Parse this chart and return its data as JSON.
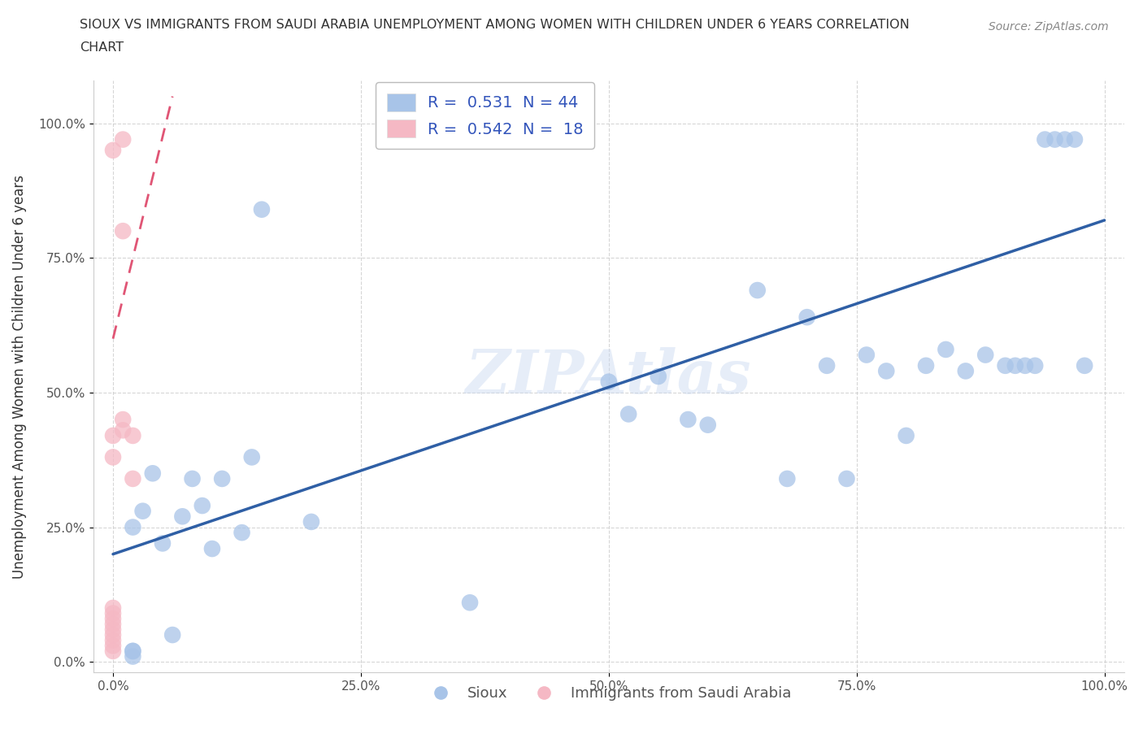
{
  "title_line1": "SIOUX VS IMMIGRANTS FROM SAUDI ARABIA UNEMPLOYMENT AMONG WOMEN WITH CHILDREN UNDER 6 YEARS CORRELATION",
  "title_line2": "CHART",
  "source": "Source: ZipAtlas.com",
  "ylabel": "Unemployment Among Women with Children Under 6 years",
  "watermark": "ZIPAtlas",
  "blue_label": "Sioux",
  "pink_label": "Immigrants from Saudi Arabia",
  "blue_R": 0.531,
  "blue_N": 44,
  "pink_R": 0.542,
  "pink_N": 18,
  "blue_color": "#a8c4e8",
  "pink_color": "#f5b8c4",
  "blue_line_color": "#2f5fa5",
  "pink_line_color": "#e05575",
  "background_color": "#ffffff",
  "xlim": [
    -0.02,
    1.02
  ],
  "ylim": [
    -0.02,
    1.08
  ],
  "xticks": [
    0,
    0.25,
    0.5,
    0.75,
    1.0
  ],
  "yticks": [
    0,
    0.25,
    0.5,
    0.75,
    1.0
  ],
  "xticklabels": [
    "0.0%",
    "25.0%",
    "50.0%",
    "75.0%",
    "100.0%"
  ],
  "yticklabels": [
    "0.0%",
    "25.0%",
    "50.0%",
    "75.0%",
    "100.0%"
  ],
  "blue_x": [
    0.02,
    0.02,
    0.02,
    0.02,
    0.03,
    0.04,
    0.05,
    0.06,
    0.07,
    0.08,
    0.09,
    0.1,
    0.11,
    0.13,
    0.14,
    0.15,
    0.2,
    0.36,
    0.5,
    0.52,
    0.55,
    0.58,
    0.6,
    0.65,
    0.68,
    0.7,
    0.72,
    0.74,
    0.76,
    0.78,
    0.8,
    0.82,
    0.84,
    0.86,
    0.88,
    0.9,
    0.91,
    0.92,
    0.93,
    0.94,
    0.95,
    0.96,
    0.97,
    0.98
  ],
  "blue_y": [
    0.01,
    0.02,
    0.02,
    0.25,
    0.28,
    0.35,
    0.22,
    0.05,
    0.27,
    0.34,
    0.29,
    0.21,
    0.34,
    0.24,
    0.38,
    0.84,
    0.26,
    0.11,
    0.52,
    0.46,
    0.53,
    0.45,
    0.44,
    0.69,
    0.34,
    0.64,
    0.55,
    0.34,
    0.57,
    0.54,
    0.42,
    0.55,
    0.58,
    0.54,
    0.57,
    0.55,
    0.55,
    0.55,
    0.55,
    0.97,
    0.97,
    0.97,
    0.97,
    0.55
  ],
  "pink_x": [
    0.0,
    0.0,
    0.0,
    0.0,
    0.0,
    0.0,
    0.0,
    0.0,
    0.0,
    0.0,
    0.0,
    0.0,
    0.01,
    0.01,
    0.01,
    0.01,
    0.02,
    0.02
  ],
  "pink_y": [
    0.02,
    0.03,
    0.04,
    0.05,
    0.06,
    0.07,
    0.08,
    0.09,
    0.1,
    0.38,
    0.42,
    0.95,
    0.43,
    0.45,
    0.8,
    0.97,
    0.34,
    0.42
  ],
  "blue_trend_x": [
    0.0,
    1.0
  ],
  "blue_trend_y": [
    0.2,
    0.82
  ],
  "pink_trend_x": [
    0.0,
    0.06
  ],
  "pink_trend_y": [
    0.6,
    1.05
  ]
}
